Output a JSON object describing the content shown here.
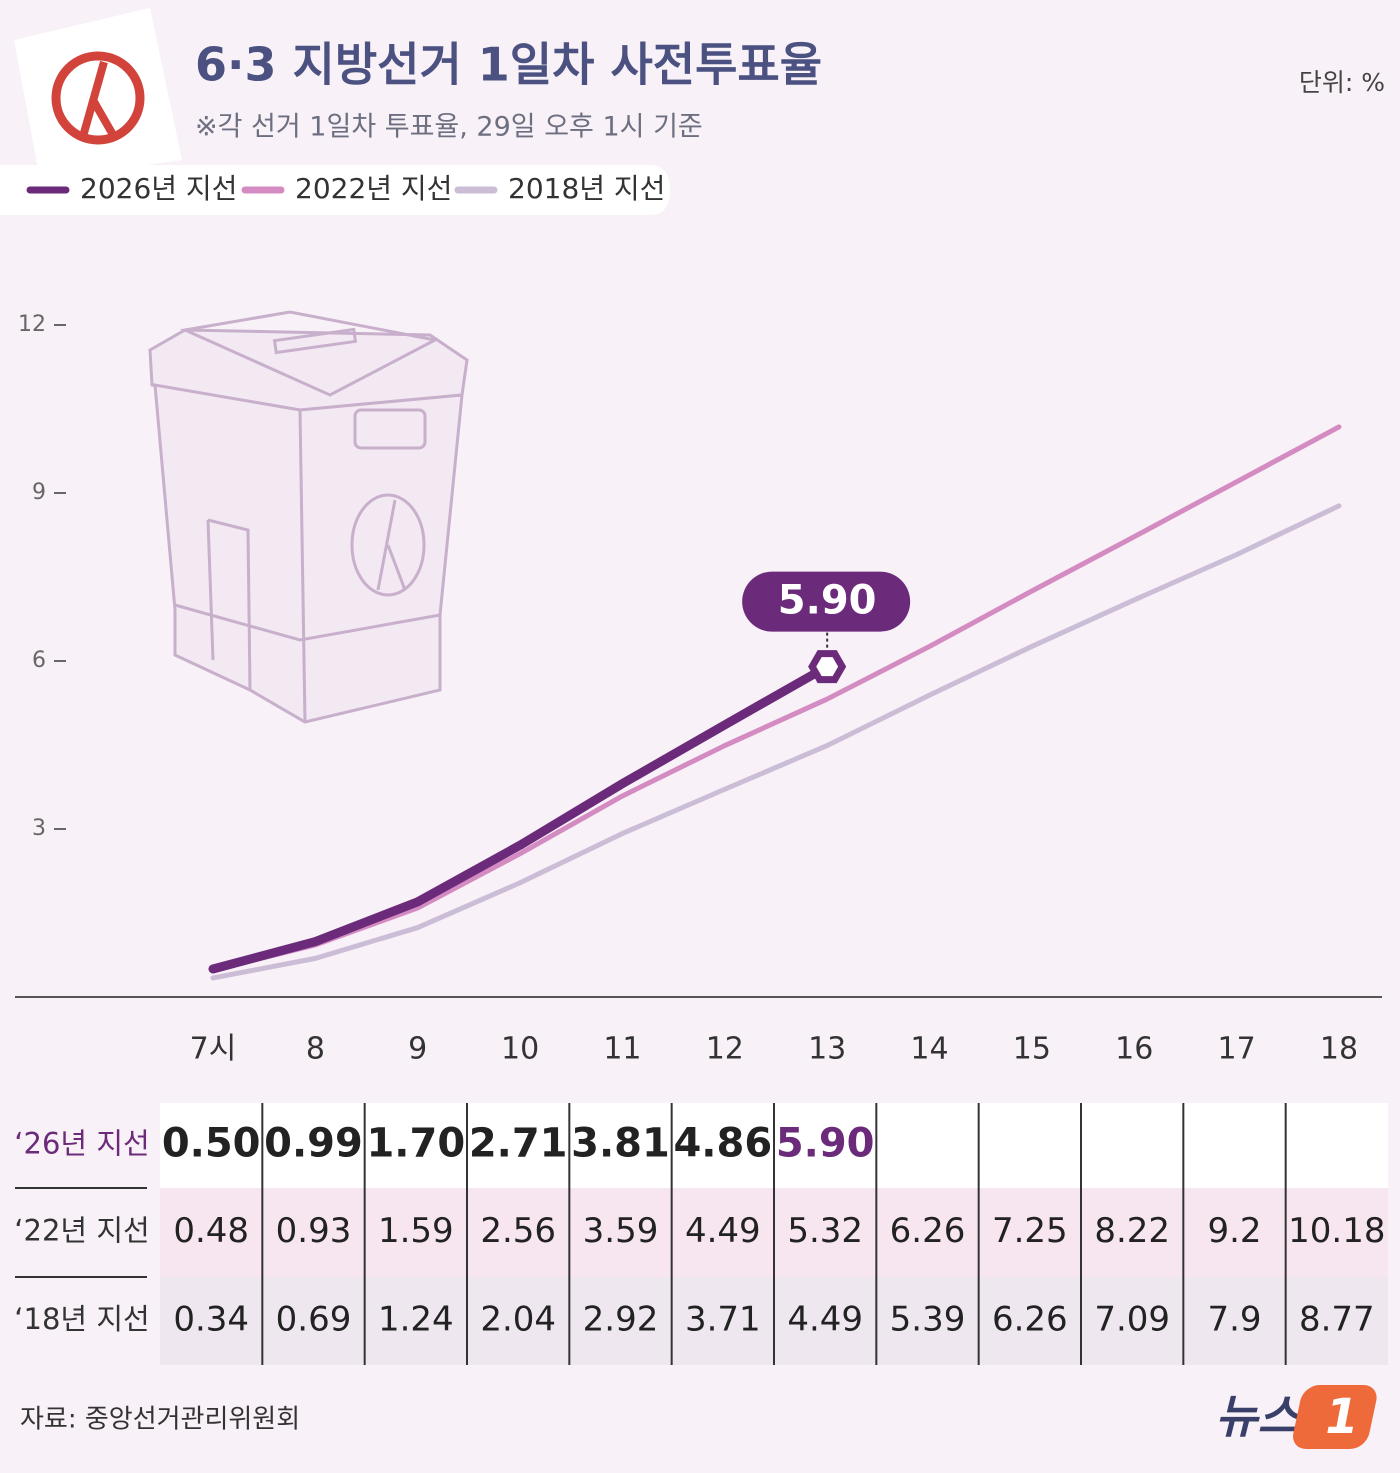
{
  "chart_data": {
    "type": "line",
    "title": "6·3 지방선거 1일차 사전투표율",
    "subtitle": "※각 선거 1일차 투표율, 29일 오후 1시 기준",
    "unit": "단위: %",
    "categories": [
      "7시",
      "8",
      "9",
      "10",
      "11",
      "12",
      "13",
      "14",
      "15",
      "16",
      "17",
      "18"
    ],
    "series": [
      {
        "name": "2026년 지선",
        "color": "#6b2a7a",
        "values": [
          0.5,
          0.99,
          1.7,
          2.71,
          3.81,
          4.86,
          5.9,
          null,
          null,
          null,
          null,
          null
        ],
        "value_labels": [
          "0.50",
          "0.99",
          "1.70",
          "2.71",
          "3.81",
          "4.86",
          "5.90",
          null,
          null,
          null,
          null,
          null
        ]
      },
      {
        "name": "2022년 지선",
        "color": "#d38bc2",
        "values": [
          0.48,
          0.93,
          1.59,
          2.56,
          3.59,
          4.49,
          5.32,
          6.26,
          7.25,
          8.22,
          9.2,
          10.18
        ]
      },
      {
        "name": "2018년 지선",
        "color": "#cbbdd6",
        "values": [
          0.34,
          0.69,
          1.24,
          2.04,
          2.92,
          3.71,
          4.49,
          5.39,
          6.26,
          7.09,
          7.9,
          8.77
        ]
      }
    ],
    "row_labels": [
      "‘26년 지선",
      "‘22년 지선",
      "‘18년 지선"
    ],
    "ylim": [
      0,
      12
    ],
    "yticks": [
      3,
      6,
      9,
      12
    ],
    "source": "자료: 중앙선거관리위원회",
    "logo": "뉴스",
    "logo_mark": "1"
  }
}
